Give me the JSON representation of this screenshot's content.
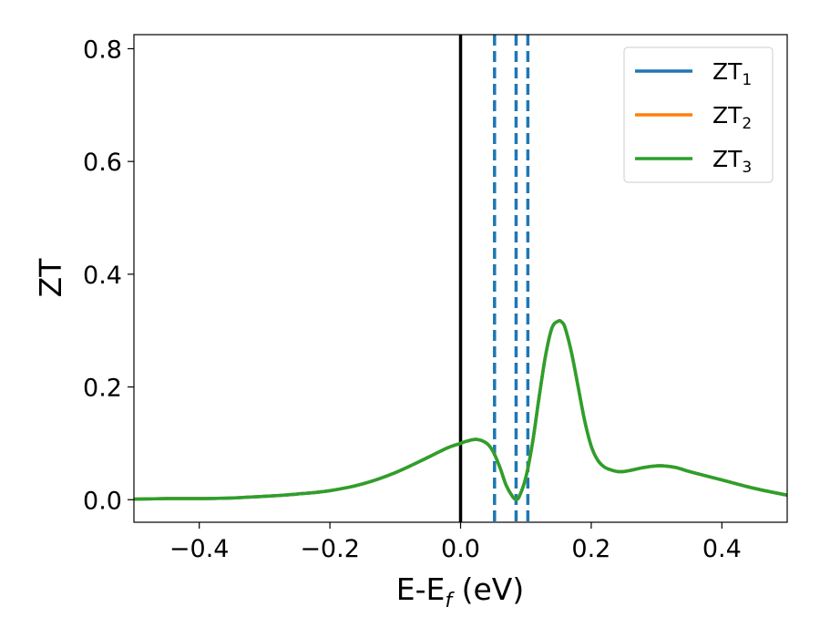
{
  "chart_data": {
    "type": "line",
    "title": "",
    "xlabel": "E-E",
    "xlabel_sub": "f",
    "xlabel_unit": " (eV)",
    "ylabel": "ZT",
    "xlim": [
      -0.5,
      0.5
    ],
    "ylim": [
      -0.04,
      0.825
    ],
    "x_ticks": [
      -0.4,
      -0.2,
      0.0,
      0.2,
      0.4
    ],
    "x_tick_labels": [
      "−0.4",
      "−0.2",
      "0.0",
      "0.2",
      "0.4"
    ],
    "y_ticks": [
      0.0,
      0.2,
      0.4,
      0.6,
      0.8
    ],
    "y_tick_labels": [
      "0.0",
      "0.2",
      "0.4",
      "0.6",
      "0.8"
    ],
    "grid": false,
    "legend_position": "top-right",
    "series": [
      {
        "name": "ZT",
        "name_sub": "1",
        "color": "#1f77b4",
        "x": [
          -0.5,
          -0.45,
          -0.4,
          -0.35,
          -0.3,
          -0.25,
          -0.2,
          -0.15,
          -0.1,
          -0.05,
          -0.02,
          0.0,
          0.01,
          0.025,
          0.04,
          0.05,
          0.06,
          0.07,
          0.08,
          0.085,
          0.09,
          0.1,
          0.11,
          0.12,
          0.13,
          0.14,
          0.15,
          0.155,
          0.16,
          0.17,
          0.18,
          0.19,
          0.2,
          0.21,
          0.22,
          0.23,
          0.24,
          0.25,
          0.26,
          0.28,
          0.3,
          0.31,
          0.33,
          0.35,
          0.4,
          0.45,
          0.5
        ],
        "y": [
          0.001,
          0.002,
          0.002,
          0.003,
          0.006,
          0.01,
          0.016,
          0.028,
          0.048,
          0.075,
          0.092,
          0.1,
          0.104,
          0.107,
          0.1,
          0.085,
          0.058,
          0.025,
          0.005,
          0.001,
          0.006,
          0.04,
          0.1,
          0.18,
          0.255,
          0.305,
          0.317,
          0.315,
          0.305,
          0.26,
          0.2,
          0.14,
          0.095,
          0.07,
          0.058,
          0.053,
          0.05,
          0.05,
          0.052,
          0.057,
          0.06,
          0.06,
          0.057,
          0.05,
          0.035,
          0.02,
          0.008
        ]
      },
      {
        "name": "ZT",
        "name_sub": "2",
        "color": "#ff7f0e",
        "x": [
          -0.5,
          -0.45,
          -0.4,
          -0.35,
          -0.3,
          -0.25,
          -0.2,
          -0.15,
          -0.1,
          -0.05,
          -0.02,
          0.0,
          0.01,
          0.025,
          0.04,
          0.05,
          0.06,
          0.07,
          0.08,
          0.085,
          0.09,
          0.1,
          0.11,
          0.12,
          0.13,
          0.14,
          0.15,
          0.155,
          0.16,
          0.17,
          0.18,
          0.19,
          0.2,
          0.21,
          0.22,
          0.23,
          0.24,
          0.25,
          0.26,
          0.28,
          0.3,
          0.31,
          0.33,
          0.35,
          0.4,
          0.45,
          0.5
        ],
        "y": [
          0.001,
          0.002,
          0.002,
          0.003,
          0.006,
          0.01,
          0.016,
          0.028,
          0.048,
          0.075,
          0.092,
          0.1,
          0.104,
          0.107,
          0.1,
          0.085,
          0.058,
          0.025,
          0.005,
          0.001,
          0.006,
          0.04,
          0.1,
          0.18,
          0.255,
          0.305,
          0.317,
          0.315,
          0.305,
          0.26,
          0.2,
          0.14,
          0.095,
          0.07,
          0.058,
          0.053,
          0.05,
          0.05,
          0.052,
          0.057,
          0.06,
          0.06,
          0.057,
          0.05,
          0.035,
          0.02,
          0.008
        ]
      },
      {
        "name": "ZT",
        "name_sub": "3",
        "color": "#2ca02c",
        "x": [
          -0.5,
          -0.45,
          -0.4,
          -0.35,
          -0.3,
          -0.25,
          -0.2,
          -0.15,
          -0.1,
          -0.05,
          -0.02,
          0.0,
          0.01,
          0.025,
          0.04,
          0.05,
          0.06,
          0.07,
          0.08,
          0.085,
          0.09,
          0.1,
          0.11,
          0.12,
          0.13,
          0.14,
          0.15,
          0.155,
          0.16,
          0.17,
          0.18,
          0.19,
          0.2,
          0.21,
          0.22,
          0.23,
          0.24,
          0.25,
          0.26,
          0.28,
          0.3,
          0.31,
          0.33,
          0.35,
          0.4,
          0.45,
          0.5
        ],
        "y": [
          0.001,
          0.002,
          0.002,
          0.003,
          0.006,
          0.01,
          0.016,
          0.028,
          0.048,
          0.075,
          0.092,
          0.1,
          0.104,
          0.107,
          0.1,
          0.085,
          0.058,
          0.025,
          0.005,
          0.001,
          0.006,
          0.04,
          0.1,
          0.18,
          0.255,
          0.305,
          0.317,
          0.315,
          0.305,
          0.26,
          0.2,
          0.14,
          0.095,
          0.07,
          0.058,
          0.053,
          0.05,
          0.05,
          0.052,
          0.057,
          0.06,
          0.06,
          0.057,
          0.05,
          0.035,
          0.02,
          0.008
        ]
      }
    ],
    "vertical_lines": [
      {
        "x": 0.0,
        "style": "solid",
        "color": "#000000"
      },
      {
        "x": 0.052,
        "style": "dashed",
        "color": "#1f77b4"
      },
      {
        "x": 0.085,
        "style": "dashed",
        "color": "#1f77b4"
      },
      {
        "x": 0.103,
        "style": "dashed",
        "color": "#1f77b4"
      }
    ]
  }
}
